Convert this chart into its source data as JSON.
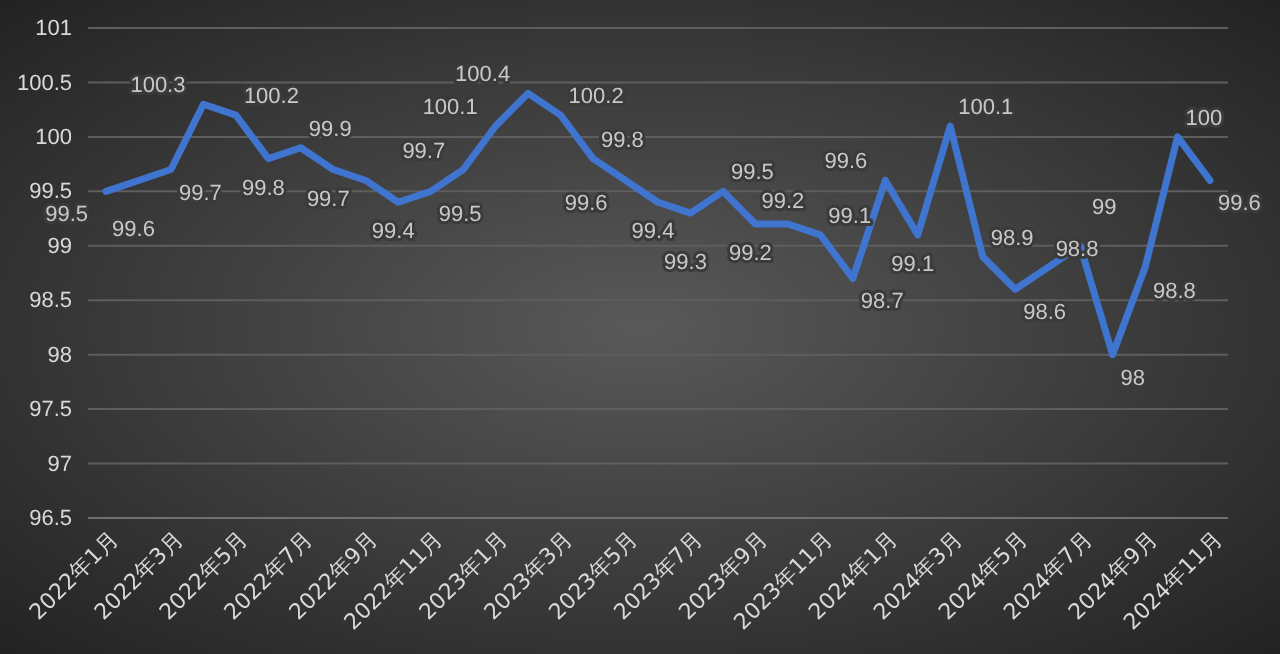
{
  "chart_data": {
    "type": "line",
    "categories": [
      "2022年1月",
      null,
      "2022年3月",
      null,
      "2022年5月",
      null,
      "2022年7月",
      null,
      "2022年9月",
      null,
      "2022年11月",
      null,
      "2023年1月",
      null,
      "2023年3月",
      null,
      "2023年5月",
      null,
      "2023年7月",
      null,
      "2023年9月",
      null,
      "2023年11月",
      null,
      "2024年1月",
      null,
      "2024年3月",
      null,
      "2024年5月",
      null,
      "2024年7月",
      null,
      "2024年9月",
      null,
      "2024年11月"
    ],
    "series": [
      {
        "color": "#3f74cf",
        "values": [
          99.5,
          99.6,
          99.7,
          100.3,
          100.2,
          99.8,
          99.9,
          99.7,
          99.6,
          99.4,
          99.5,
          99.7,
          100.1,
          100.4,
          100.2,
          99.8,
          99.6,
          99.4,
          99.3,
          99.5,
          99.2,
          99.2,
          99.1,
          98.7,
          99.6,
          99.1,
          100.1,
          98.9,
          98.6,
          98.8,
          99,
          98,
          98.8,
          100,
          99.6
        ],
        "value_labels": [
          "99.5",
          "99.6",
          "99.7",
          "100.3",
          "100.2",
          "99.8",
          "99.9",
          "99.7",
          null,
          "99.4",
          "99.5",
          "99.7",
          "100.1",
          "100.4",
          "100.2",
          "99.8",
          "99.6",
          "99.4",
          "99.3",
          "99.5",
          "99.2",
          "99.2",
          "99.1",
          "98.7",
          "99.6",
          "99.1",
          "100.1",
          "98.9",
          "98.6",
          "98.8",
          "99",
          "98",
          "98.8",
          "100",
          "99.6"
        ]
      }
    ],
    "ylim": [
      96.5,
      101
    ],
    "yticks": [
      96.5,
      97,
      97.5,
      98,
      98.5,
      99,
      99.5,
      100,
      100.5,
      101
    ],
    "grid": "y",
    "marker": "none",
    "line_style": "solid"
  }
}
